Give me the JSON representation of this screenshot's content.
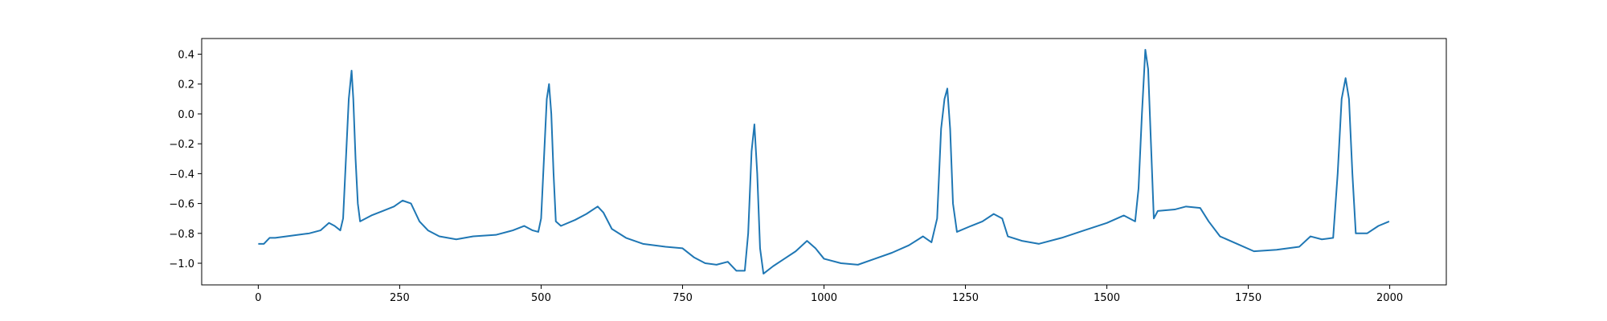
{
  "chart_data": {
    "type": "line",
    "x": [
      0,
      10,
      20,
      30,
      50,
      70,
      90,
      110,
      125,
      135,
      145,
      150,
      155,
      160,
      165,
      168,
      172,
      176,
      180,
      200,
      220,
      240,
      255,
      270,
      285,
      300,
      320,
      350,
      380,
      420,
      450,
      470,
      485,
      495,
      500,
      505,
      510,
      514,
      518,
      522,
      526,
      535,
      560,
      580,
      600,
      610,
      625,
      650,
      680,
      720,
      750,
      770,
      790,
      810,
      830,
      845,
      860,
      866,
      872,
      877,
      882,
      887,
      893,
      910,
      930,
      950,
      970,
      985,
      1000,
      1030,
      1060,
      1090,
      1120,
      1150,
      1175,
      1190,
      1200,
      1207,
      1213,
      1218,
      1223,
      1228,
      1235,
      1260,
      1280,
      1300,
      1315,
      1325,
      1350,
      1380,
      1420,
      1460,
      1500,
      1530,
      1550,
      1556,
      1562,
      1568,
      1573,
      1578,
      1583,
      1590,
      1620,
      1640,
      1665,
      1680,
      1700,
      1730,
      1760,
      1800,
      1840,
      1860,
      1880,
      1900,
      1908,
      1915,
      1922,
      1928,
      1934,
      1940,
      1960,
      1980,
      1999
    ],
    "series": [
      {
        "color": "#1f77b4",
        "values": [
          -0.87,
          -0.87,
          -0.83,
          -0.83,
          -0.82,
          -0.81,
          -0.8,
          -0.78,
          -0.73,
          -0.75,
          -0.78,
          -0.7,
          -0.3,
          0.1,
          0.29,
          0.1,
          -0.3,
          -0.6,
          -0.72,
          -0.68,
          -0.65,
          -0.62,
          -0.58,
          -0.6,
          -0.72,
          -0.78,
          -0.82,
          -0.84,
          -0.82,
          -0.81,
          -0.78,
          -0.75,
          -0.78,
          -0.79,
          -0.7,
          -0.3,
          0.1,
          0.2,
          0.0,
          -0.4,
          -0.72,
          -0.75,
          -0.71,
          -0.67,
          -0.62,
          -0.66,
          -0.77,
          -0.83,
          -0.87,
          -0.89,
          -0.9,
          -0.96,
          -1.0,
          -1.01,
          -0.99,
          -1.05,
          -1.05,
          -0.8,
          -0.25,
          -0.07,
          -0.4,
          -0.9,
          -1.07,
          -1.02,
          -0.97,
          -0.92,
          -0.85,
          -0.9,
          -0.97,
          -1.0,
          -1.01,
          -0.97,
          -0.93,
          -0.88,
          -0.82,
          -0.86,
          -0.7,
          -0.1,
          0.1,
          0.17,
          -0.1,
          -0.6,
          -0.79,
          -0.75,
          -0.72,
          -0.67,
          -0.7,
          -0.82,
          -0.85,
          -0.87,
          -0.83,
          -0.78,
          -0.73,
          -0.68,
          -0.72,
          -0.5,
          0.0,
          0.43,
          0.3,
          -0.2,
          -0.7,
          -0.65,
          -0.64,
          -0.62,
          -0.63,
          -0.72,
          -0.82,
          -0.87,
          -0.92,
          -0.91,
          -0.89,
          -0.82,
          -0.84,
          -0.83,
          -0.4,
          0.1,
          0.24,
          0.1,
          -0.4,
          -0.8,
          -0.8,
          -0.75,
          -0.72
        ]
      }
    ],
    "xlim": [
      -100,
      2100
    ],
    "xticks": [
      0,
      250,
      500,
      750,
      1000,
      1250,
      1500,
      1750,
      2000
    ],
    "ylim": [
      -1.145,
      0.505
    ],
    "yticks": [
      {
        "value": -1.0,
        "label": "−1.0"
      },
      {
        "value": -0.8,
        "label": "−0.8"
      },
      {
        "value": -0.6,
        "label": "−0.6"
      },
      {
        "value": -0.4,
        "label": "−0.4"
      },
      {
        "value": -0.2,
        "label": "−0.2"
      },
      {
        "value": 0.0,
        "label": "0.0"
      },
      0.2,
      0.4
    ],
    "grid": false
  }
}
